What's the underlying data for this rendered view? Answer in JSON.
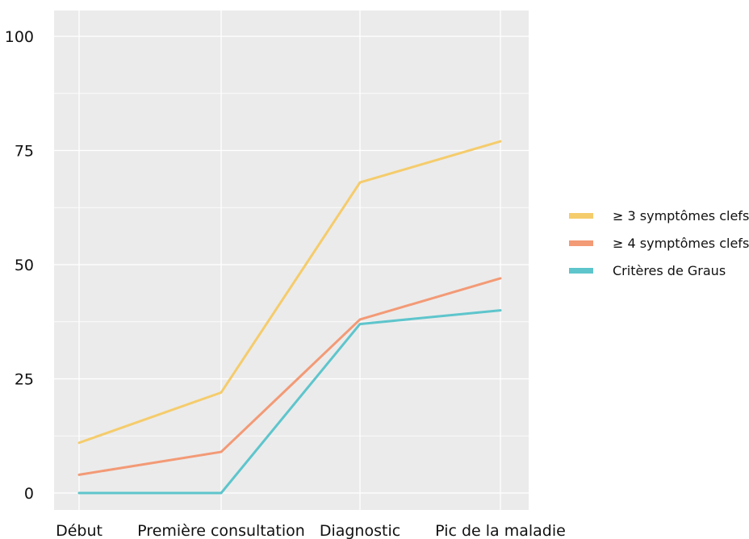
{
  "chart_data": {
    "type": "line",
    "categories": [
      "Début",
      "Première consultation",
      "Diagnostic",
      "Pic de la maladie"
    ],
    "series": [
      {
        "name": "≥ 3 symptômes clefs",
        "values": [
          11,
          22,
          68,
          77
        ],
        "color": "#f5cc6c"
      },
      {
        "name": "≥ 4 symptômes clefs",
        "values": [
          4,
          9,
          38,
          47
        ],
        "color": "#f39a76"
      },
      {
        "name": "Critères de Graus",
        "values": [
          0,
          0,
          37,
          40
        ],
        "color": "#5ec5cc"
      }
    ],
    "yticks": [
      0,
      25,
      50,
      75,
      100
    ],
    "ylim": [
      0,
      100
    ],
    "grid": true,
    "background": "#ebebeb",
    "legend_position": "right"
  }
}
